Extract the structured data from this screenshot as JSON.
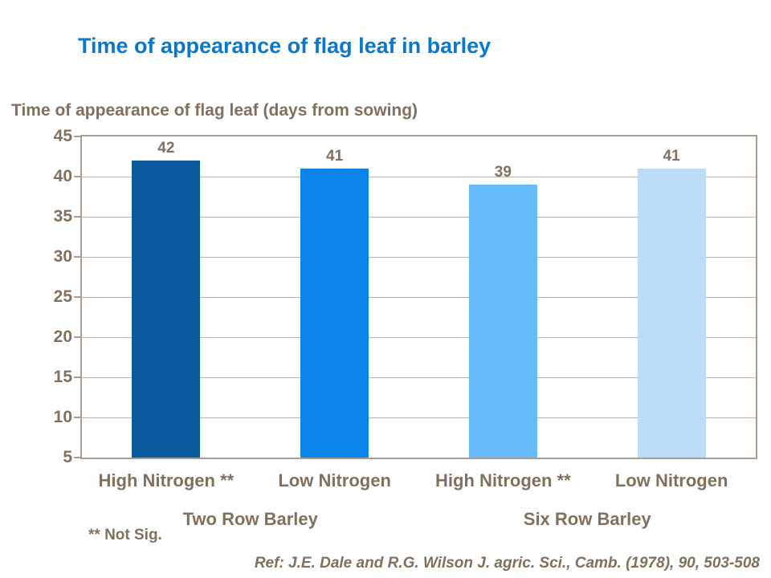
{
  "page": {
    "title": "Time of appearance of flag leaf in barley",
    "footnote": "** Not Sig.",
    "reference": "Ref: J.E. Dale and R.G. Wilson J. agric. Sci., Camb. (1978), 90, 503-508"
  },
  "chart_data": {
    "type": "bar",
    "title": "Time of appearance of flag leaf (days from sowing)",
    "categories": [
      "High Nitrogen **",
      "Low Nitrogen",
      "High Nitrogen **",
      "Low Nitrogen"
    ],
    "values": [
      42,
      41,
      39,
      41
    ],
    "bar_colors": [
      "#0B5A9E",
      "#0A84E8",
      "#66BCFA",
      "#BBDDF8"
    ],
    "groups": [
      {
        "label": "Two Row Barley",
        "span": [
          0,
          1
        ]
      },
      {
        "label": "Six Row Barley",
        "span": [
          2,
          3
        ]
      }
    ],
    "xlabel": "",
    "ylabel": "",
    "ylim": [
      5,
      45
    ],
    "yticks": [
      5,
      10,
      15,
      20,
      25,
      30,
      35,
      40,
      45
    ],
    "grid": true,
    "legend": false
  },
  "colors": {
    "title_blue": "#0A78C8",
    "text_taupe": "#80705D",
    "axis_line": "#A89E92",
    "gridline": "#BCB2A7"
  }
}
